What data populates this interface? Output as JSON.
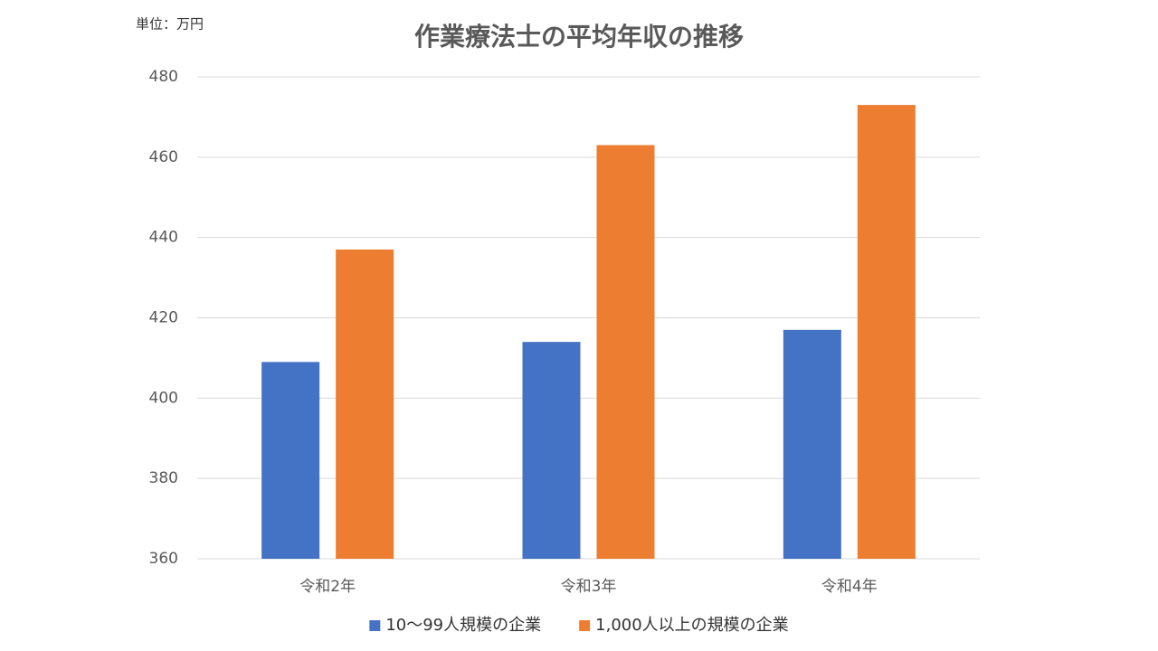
{
  "chart_data": {
    "type": "bar",
    "title": "作業療法士の平均年収の推移",
    "unit_label": "単位：万円",
    "categories": [
      "令和2年",
      "令和3年",
      "令和4年"
    ],
    "series": [
      {
        "name": "10〜99人規模の企業",
        "color": "#4472c4",
        "values": [
          409,
          414,
          417
        ]
      },
      {
        "name": "1,000人以上の規模の企業",
        "color": "#ed7d31",
        "values": [
          437,
          463,
          473
        ]
      }
    ],
    "ylim": [
      360,
      480
    ],
    "yticks": [
      360,
      380,
      400,
      420,
      440,
      460,
      480
    ],
    "grid": true,
    "legend": "bottom"
  }
}
